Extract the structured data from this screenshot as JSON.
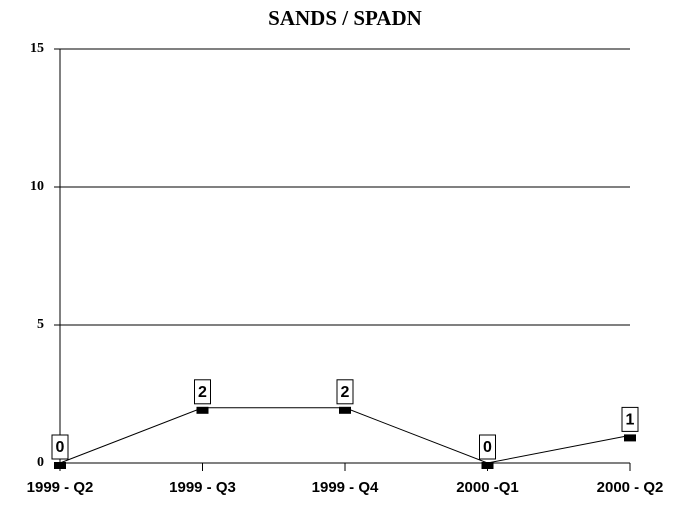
{
  "chart_data": {
    "type": "line",
    "title": "SANDS / SPADN",
    "categories": [
      "1999 - Q2",
      "1999 - Q3",
      "1999 - Q4",
      "2000 -Q1",
      "2000 - Q2"
    ],
    "values": [
      0,
      2,
      2,
      0,
      1
    ],
    "color": "#000000",
    "ylim": [
      0,
      15
    ],
    "yticks": [
      0,
      5,
      10,
      15
    ],
    "grid": true
  }
}
